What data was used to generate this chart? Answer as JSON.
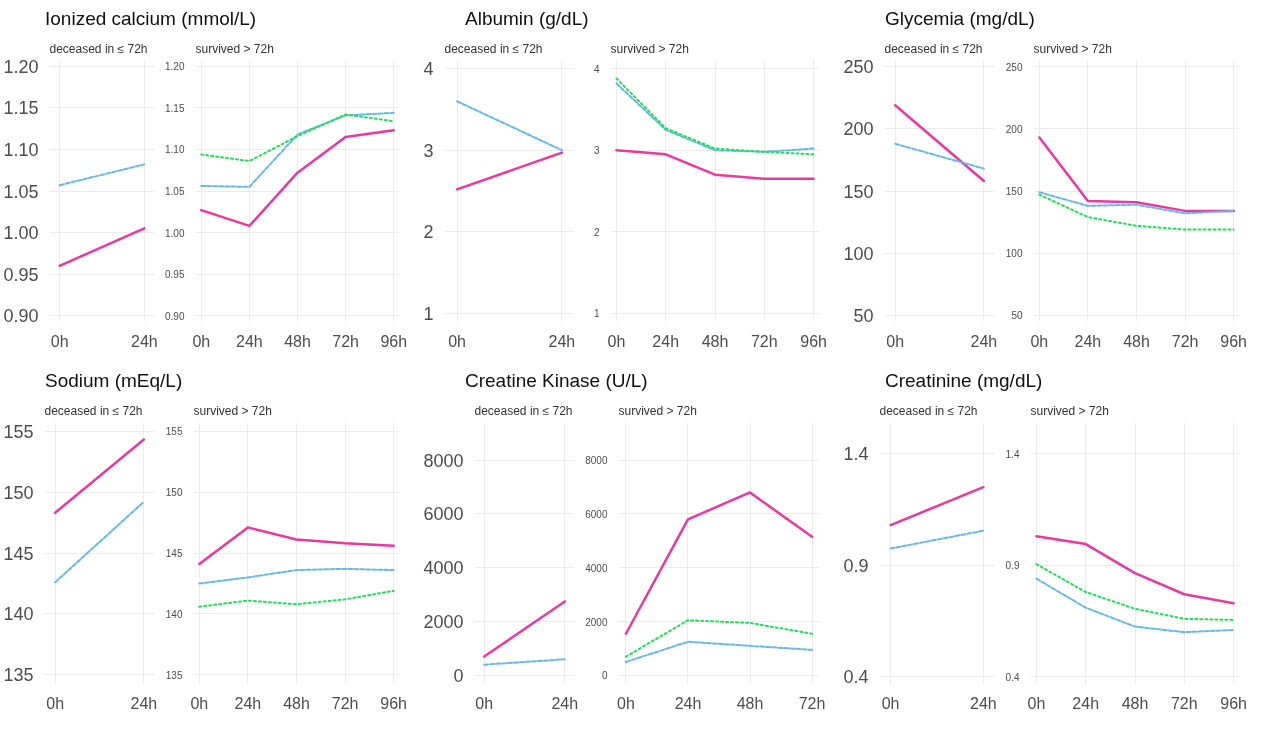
{
  "chart_data": [
    {
      "type": "line",
      "title": "Ionized calcium (mmol/L)",
      "subtitle": "deceased in ≤ 72h",
      "categories": [
        "0h",
        "24h"
      ],
      "ylim": [
        0.893,
        1.207
      ],
      "yticks": [
        {
          "value": 0.9,
          "label": "0.90"
        },
        {
          "value": 0.95,
          "label": "0.95"
        },
        {
          "value": 1.0,
          "label": "1.00"
        },
        {
          "value": 1.05,
          "label": "1.05"
        },
        {
          "value": 1.1,
          "label": "1.10"
        },
        {
          "value": 1.15,
          "label": "1.15"
        },
        {
          "value": 1.2,
          "label": "1.20"
        }
      ],
      "grid": true,
      "series": [
        {
          "color": "#e8399f",
          "line_style": "solid",
          "values": [
            0.96,
            1.005
          ]
        },
        {
          "color": "#67b8e8",
          "line_style": "dashed",
          "values": [
            1.057,
            1.082
          ]
        }
      ]
    },
    {
      "type": "line",
      "title": "survived > 72h",
      "categories": [
        "0h",
        "24h",
        "48h",
        "72h",
        "96h"
      ],
      "ylim": [
        0.893,
        1.207
      ],
      "yticks": [
        {
          "value": 0.9,
          "label": "0.90"
        },
        {
          "value": 0.95,
          "label": "0.95"
        },
        {
          "value": 1.0,
          "label": "1.00"
        },
        {
          "value": 1.05,
          "label": "1.05"
        },
        {
          "value": 1.1,
          "label": "1.10"
        },
        {
          "value": 1.15,
          "label": "1.15"
        },
        {
          "value": 1.2,
          "label": "1.20"
        }
      ],
      "grid": true,
      "series": [
        {
          "color": "#e8399f",
          "line_style": "solid",
          "values": [
            1.027,
            1.008,
            1.072,
            1.115,
            1.123
          ]
        },
        {
          "color": "#67b8e8",
          "line_style": "dashed",
          "values": [
            1.056,
            1.055,
            1.118,
            1.141,
            1.144
          ]
        },
        {
          "color": "#22dd55",
          "line_style": "dotted",
          "values": [
            1.094,
            1.086,
            1.116,
            1.142,
            1.134
          ]
        }
      ]
    },
    {
      "type": "line",
      "title": "Albumin (g/dL)",
      "subtitle": "deceased in ≤ 72h",
      "categories": [
        "0h",
        "24h"
      ],
      "ylim": [
        0.9,
        4.1
      ],
      "yticks": [
        1,
        2,
        3,
        4
      ],
      "grid": true,
      "series": [
        {
          "color": "#e8399f",
          "line_style": "solid",
          "values": [
            2.52,
            2.97
          ]
        },
        {
          "color": "#67b8e8",
          "line_style": "dashed",
          "values": [
            3.6,
            3.0
          ]
        }
      ]
    },
    {
      "type": "line",
      "title": "survived > 72h",
      "categories": [
        "0h",
        "24h",
        "48h",
        "72h",
        "96h"
      ],
      "ylim": [
        0.9,
        4.1
      ],
      "yticks": [
        1,
        2,
        3,
        4
      ],
      "grid": true,
      "series": [
        {
          "color": "#e8399f",
          "line_style": "solid",
          "values": [
            3.0,
            2.95,
            2.7,
            2.65,
            2.65
          ]
        },
        {
          "color": "#67b8e8",
          "line_style": "dashed",
          "values": [
            3.82,
            3.25,
            3.0,
            2.98,
            3.02
          ]
        },
        {
          "color": "#22dd55",
          "line_style": "dotted",
          "values": [
            3.88,
            3.27,
            3.02,
            2.98,
            2.95
          ]
        }
      ]
    },
    {
      "type": "line",
      "title": "Glycemia (mg/dL)",
      "subtitle": "deceased in ≤ 72h",
      "categories": [
        "0h",
        "24h"
      ],
      "ylim": [
        45,
        255
      ],
      "yticks": [
        50,
        100,
        150,
        200,
        250
      ],
      "grid": true,
      "series": [
        {
          "color": "#e8399f",
          "line_style": "solid",
          "values": [
            219,
            158
          ]
        },
        {
          "color": "#67b8e8",
          "line_style": "dashed",
          "values": [
            188,
            168
          ]
        }
      ]
    },
    {
      "type": "line",
      "title": "survived > 72h",
      "categories": [
        "0h",
        "24h",
        "48h",
        "72h",
        "96h"
      ],
      "ylim": [
        45,
        255
      ],
      "yticks": [
        50,
        100,
        150,
        200,
        250
      ],
      "grid": true,
      "series": [
        {
          "color": "#e8399f",
          "line_style": "solid",
          "values": [
            193,
            142,
            141,
            134,
            134
          ]
        },
        {
          "color": "#67b8e8",
          "line_style": "dashed",
          "values": [
            149,
            138,
            139,
            132,
            134
          ]
        },
        {
          "color": "#22dd55",
          "line_style": "dotted",
          "values": [
            147,
            129,
            122,
            119,
            119
          ]
        }
      ]
    },
    {
      "type": "line",
      "title": "Sodium (mEq/L)",
      "subtitle": "deceased in ≤ 72h",
      "categories": [
        "0h",
        "24h"
      ],
      "ylim": [
        134.3,
        155.7
      ],
      "yticks": [
        135,
        140,
        145,
        150,
        155
      ],
      "grid": true,
      "series": [
        {
          "color": "#e8399f",
          "line_style": "solid",
          "values": [
            148.3,
            154.3
          ]
        },
        {
          "color": "#67b8e8",
          "line_style": "dashed",
          "values": [
            142.6,
            149.2
          ]
        }
      ]
    },
    {
      "type": "line",
      "title": "survived > 72h",
      "categories": [
        "0h",
        "24h",
        "48h",
        "72h",
        "96h"
      ],
      "ylim": [
        134.3,
        155.7
      ],
      "yticks": [
        135,
        140,
        145,
        150,
        155
      ],
      "grid": true,
      "series": [
        {
          "color": "#e8399f",
          "line_style": "solid",
          "values": [
            144.1,
            147.1,
            146.1,
            145.8,
            145.6
          ]
        },
        {
          "color": "#67b8e8",
          "line_style": "dashed",
          "values": [
            142.5,
            143.0,
            143.6,
            143.7,
            143.6
          ]
        },
        {
          "color": "#22dd55",
          "line_style": "dotted",
          "values": [
            140.6,
            141.1,
            140.8,
            141.2,
            141.9
          ]
        }
      ]
    },
    {
      "type": "line",
      "title": "Creatine Kinase (U/L)",
      "subtitle": "deceased in ≤ 72h",
      "categories": [
        "0h",
        "24h"
      ],
      "ylim": [
        -300,
        9400
      ],
      "yticks": [
        0,
        2000,
        4000,
        6000,
        8000
      ],
      "grid": true,
      "series": [
        {
          "color": "#e8399f",
          "line_style": "solid",
          "values": [
            700,
            2750
          ]
        },
        {
          "color": "#67b8e8",
          "line_style": "dashed",
          "values": [
            400,
            600
          ]
        }
      ]
    },
    {
      "type": "line",
      "title": "survived > 72h",
      "categories": [
        "0h",
        "24h",
        "48h",
        "72h"
      ],
      "ylim": [
        -300,
        9400
      ],
      "yticks": [
        0,
        2000,
        4000,
        6000,
        8000
      ],
      "grid": true,
      "series": [
        {
          "color": "#e8399f",
          "line_style": "solid",
          "values": [
            1550,
            5800,
            6800,
            5150
          ]
        },
        {
          "color": "#67b8e8",
          "line_style": "dashed",
          "values": [
            500,
            1250,
            1100,
            950
          ]
        },
        {
          "color": "#22dd55",
          "line_style": "dotted",
          "values": [
            700,
            2050,
            1950,
            1550
          ]
        }
      ]
    },
    {
      "type": "line",
      "title": "Creatinine (mg/dL)",
      "subtitle": "deceased in ≤ 72h",
      "categories": [
        "0h",
        "24h"
      ],
      "ylim": [
        0.37,
        1.54
      ],
      "yticks": [
        0.4,
        0.9,
        1.4
      ],
      "grid": true,
      "series": [
        {
          "color": "#e8399f",
          "line_style": "solid",
          "values": [
            1.08,
            1.25
          ]
        },
        {
          "color": "#67b8e8",
          "line_style": "dashed",
          "values": [
            0.975,
            1.055
          ]
        }
      ]
    },
    {
      "type": "line",
      "title": "survived > 72h",
      "categories": [
        "0h",
        "24h",
        "48h",
        "72h",
        "96h"
      ],
      "ylim": [
        0.37,
        1.54
      ],
      "yticks": [
        0.4,
        0.9,
        1.4
      ],
      "grid": true,
      "series": [
        {
          "color": "#e8399f",
          "line_style": "solid",
          "values": [
            1.03,
            0.995,
            0.865,
            0.77,
            0.73
          ]
        },
        {
          "color": "#67b8e8",
          "line_style": "dashed",
          "values": [
            0.84,
            0.71,
            0.625,
            0.6,
            0.61
          ]
        },
        {
          "color": "#22dd55",
          "line_style": "dotted",
          "values": [
            0.905,
            0.78,
            0.705,
            0.66,
            0.655
          ]
        }
      ]
    }
  ]
}
